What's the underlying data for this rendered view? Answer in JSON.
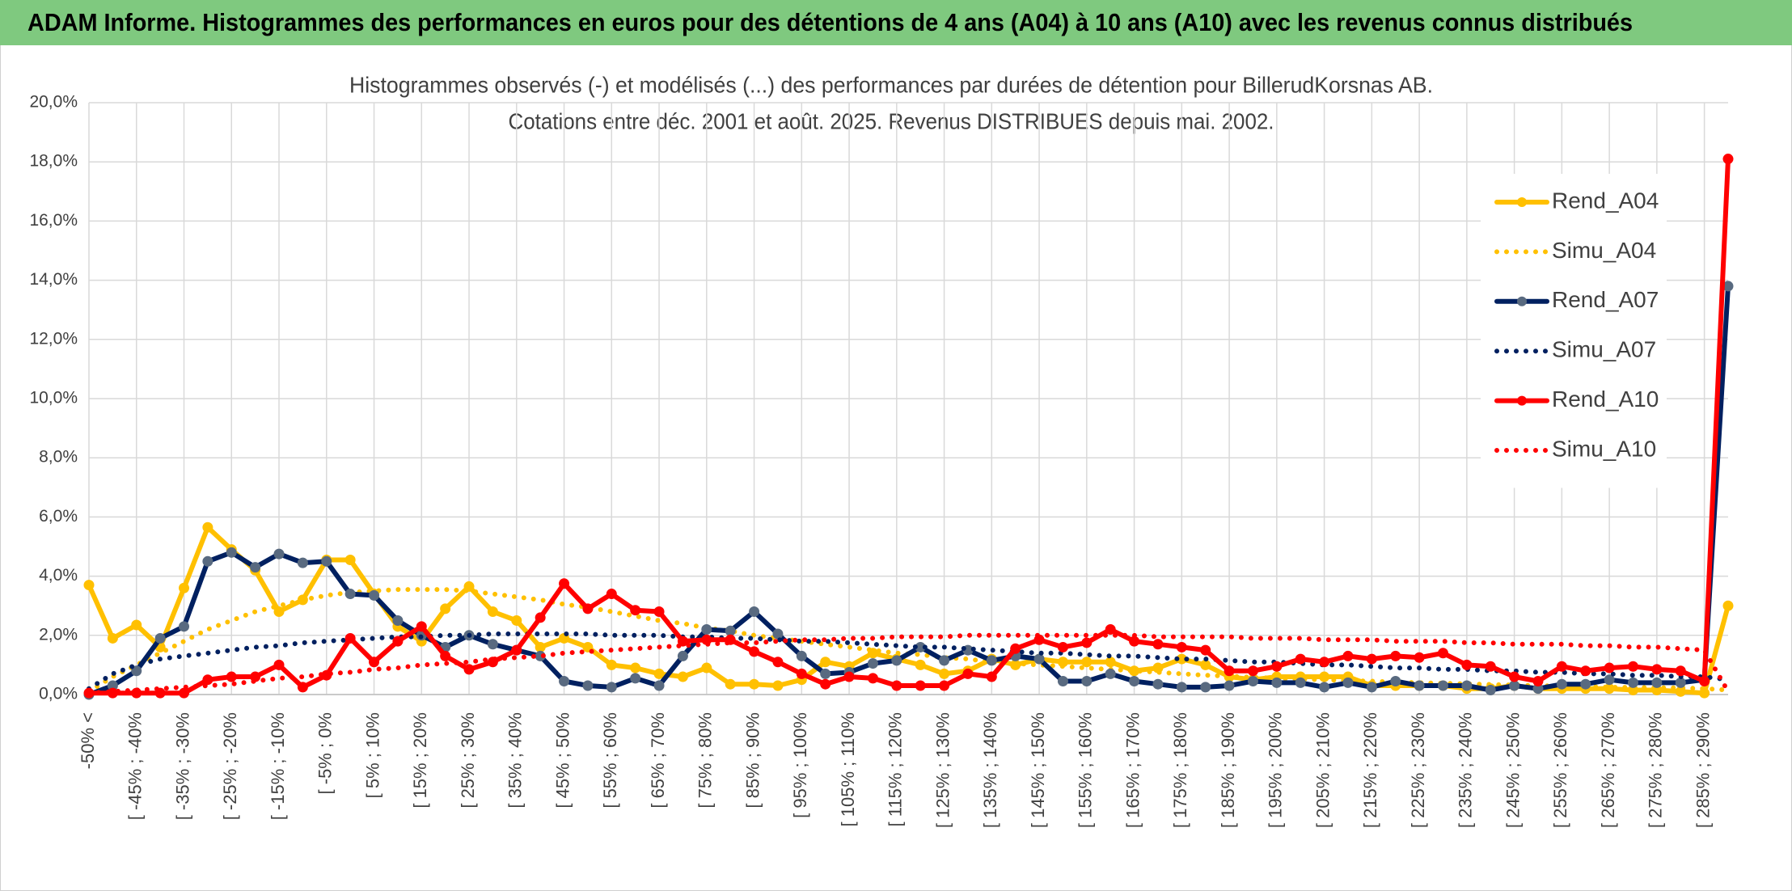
{
  "header": {
    "title": "ADAM Informe. Histogrammes des performances en euros pour des détentions de 4 ans (A04) à 10 ans (A10) avec les revenus connus distribués"
  },
  "chart_data": {
    "type": "line",
    "title": "Histogrammes observés (-) et modélisés (...) des performances par durées de détention pour BillerudKorsnas AB.",
    "subtitle": "Cotations entre déc. 2001 et août. 2025. Revenus DISTRIBUES depuis mai. 2002.",
    "categories": [
      "-50% <",
      null,
      "[ -45% ; -40%",
      null,
      "[ -35% ; -30%",
      null,
      "[ -25% ; -20%",
      null,
      "[ -15% ; -10%",
      null,
      "[ -5% ; 0%",
      null,
      "[ 5% ; 10%",
      null,
      "[ 15% ; 20%",
      null,
      "[ 25% ; 30%",
      null,
      "[ 35% ; 40%",
      null,
      "[ 45% ; 50%",
      null,
      "[ 55% ; 60%",
      null,
      "[ 65% ; 70%",
      null,
      "[ 75% ; 80%",
      null,
      "[ 85% ; 90%",
      null,
      "[ 95% ; 100%",
      null,
      "[ 105% ; 110%",
      null,
      "[ 115% ; 120%",
      null,
      "[ 125% ; 130%",
      null,
      "[ 135% ; 140%",
      null,
      "[ 145% ; 150%",
      null,
      "[ 155% ; 160%",
      null,
      "[ 165% ; 170%",
      null,
      "[ 175% ; 180%",
      null,
      "[ 185% ; 190%",
      null,
      "[ 195% ; 200%",
      null,
      "[ 205% ; 210%",
      null,
      "[ 215% ; 220%",
      null,
      "[ 225% ; 230%",
      null,
      "[ 235% ; 240%",
      null,
      "[ 245% ; 250%",
      null,
      "[ 255% ; 260%",
      null,
      "[ 265% ; 270%",
      null,
      "[ 275% ; 280%",
      null,
      "[ 285% ; 290%",
      null
    ],
    "series": [
      {
        "name": "Rend_A04",
        "color": "#FFC000",
        "style": "solid",
        "marker": true,
        "values": [
          3.7,
          1.9,
          2.35,
          1.6,
          3.6,
          5.65,
          4.9,
          4.2,
          2.8,
          3.2,
          4.55,
          4.55,
          3.4,
          2.3,
          1.8,
          2.9,
          3.65,
          2.8,
          2.5,
          1.6,
          1.9,
          1.6,
          1.0,
          0.9,
          0.7,
          0.6,
          0.9,
          0.35,
          0.35,
          0.3,
          0.5,
          1.1,
          0.95,
          1.4,
          1.2,
          1.0,
          0.7,
          0.8,
          1.2,
          1.0,
          1.2,
          1.1,
          1.1,
          1.1,
          0.8,
          0.9,
          1.2,
          1.0,
          0.6,
          0.5,
          0.6,
          0.6,
          0.6,
          0.6,
          0.3,
          0.3,
          0.3,
          0.3,
          0.2,
          0.2,
          0.3,
          0.2,
          0.2,
          0.2,
          0.2,
          0.15,
          0.15,
          0.1,
          0.05,
          3.0
        ]
      },
      {
        "name": "Simu_A04",
        "color": "#FFC000",
        "style": "dotted",
        "marker": false,
        "values": [
          0.1,
          0.6,
          1.0,
          1.4,
          1.8,
          2.2,
          2.5,
          2.8,
          3.0,
          3.2,
          3.35,
          3.45,
          3.5,
          3.55,
          3.55,
          3.55,
          3.5,
          3.4,
          3.3,
          3.2,
          3.05,
          2.95,
          2.8,
          2.65,
          2.5,
          2.4,
          2.25,
          2.15,
          2.0,
          1.9,
          1.8,
          1.7,
          1.6,
          1.5,
          1.4,
          1.35,
          1.25,
          1.2,
          1.1,
          1.05,
          1.0,
          0.95,
          0.9,
          0.85,
          0.8,
          0.75,
          0.7,
          0.65,
          0.62,
          0.58,
          0.55,
          0.52,
          0.5,
          0.47,
          0.45,
          0.42,
          0.4,
          0.38,
          0.36,
          0.34,
          0.32,
          0.3,
          0.28,
          0.27,
          0.25,
          0.24,
          0.23,
          0.22,
          0.2,
          0.15
        ]
      },
      {
        "name": "Rend_A07",
        "color": "#002060",
        "marker_color": "#596a80",
        "style": "solid",
        "marker": true,
        "values": [
          0.0,
          0.3,
          0.8,
          1.9,
          2.3,
          4.5,
          4.8,
          4.3,
          4.75,
          4.45,
          4.5,
          3.4,
          3.35,
          2.5,
          2.0,
          1.6,
          2.0,
          1.7,
          1.5,
          1.3,
          0.45,
          0.3,
          0.25,
          0.55,
          0.3,
          1.3,
          2.2,
          2.15,
          2.8,
          2.05,
          1.3,
          0.7,
          0.75,
          1.05,
          1.15,
          1.6,
          1.15,
          1.5,
          1.15,
          1.3,
          1.2,
          0.45,
          0.45,
          0.7,
          0.45,
          0.35,
          0.25,
          0.25,
          0.3,
          0.45,
          0.4,
          0.4,
          0.25,
          0.4,
          0.25,
          0.45,
          0.3,
          0.3,
          0.3,
          0.15,
          0.3,
          0.2,
          0.35,
          0.35,
          0.5,
          0.4,
          0.4,
          0.4,
          0.5,
          13.8
        ]
      },
      {
        "name": "Simu_A07",
        "color": "#002060",
        "style": "dotted",
        "marker": false,
        "values": [
          0.2,
          0.7,
          1.0,
          1.2,
          1.3,
          1.4,
          1.5,
          1.6,
          1.65,
          1.75,
          1.8,
          1.85,
          1.9,
          1.95,
          1.95,
          2.0,
          2.0,
          2.05,
          2.05,
          2.05,
          2.05,
          2.05,
          2.0,
          2.0,
          2.0,
          1.95,
          1.95,
          1.9,
          1.9,
          1.85,
          1.8,
          1.8,
          1.75,
          1.7,
          1.65,
          1.6,
          1.6,
          1.55,
          1.5,
          1.45,
          1.4,
          1.4,
          1.35,
          1.3,
          1.3,
          1.25,
          1.2,
          1.2,
          1.15,
          1.1,
          1.1,
          1.05,
          1.0,
          1.0,
          0.95,
          0.9,
          0.9,
          0.85,
          0.85,
          0.8,
          0.8,
          0.75,
          0.75,
          0.7,
          0.7,
          0.65,
          0.65,
          0.6,
          0.6,
          0.5
        ]
      },
      {
        "name": "Rend_A10",
        "color": "#FF0000",
        "style": "solid",
        "marker": true,
        "values": [
          0.05,
          0.05,
          0.05,
          0.05,
          0.05,
          0.5,
          0.6,
          0.6,
          1.0,
          0.25,
          0.65,
          1.9,
          1.1,
          1.8,
          2.3,
          1.3,
          0.85,
          1.1,
          1.5,
          2.6,
          3.75,
          2.9,
          3.4,
          2.85,
          2.8,
          1.8,
          1.85,
          1.85,
          1.45,
          1.1,
          0.7,
          0.35,
          0.6,
          0.55,
          0.3,
          0.3,
          0.3,
          0.7,
          0.6,
          1.55,
          1.85,
          1.6,
          1.75,
          2.2,
          1.8,
          1.7,
          1.6,
          1.5,
          0.8,
          0.8,
          0.95,
          1.2,
          1.1,
          1.3,
          1.2,
          1.3,
          1.25,
          1.4,
          1.0,
          0.95,
          0.6,
          0.45,
          0.95,
          0.8,
          0.9,
          0.95,
          0.85,
          0.8,
          0.45,
          18.1
        ]
      },
      {
        "name": "Simu_A10",
        "color": "#FF0000",
        "style": "dotted",
        "marker": false,
        "values": [
          0.05,
          0.1,
          0.15,
          0.2,
          0.25,
          0.3,
          0.35,
          0.45,
          0.55,
          0.6,
          0.7,
          0.75,
          0.85,
          0.9,
          1.0,
          1.05,
          1.1,
          1.2,
          1.25,
          1.3,
          1.4,
          1.45,
          1.5,
          1.55,
          1.6,
          1.65,
          1.7,
          1.75,
          1.75,
          1.8,
          1.85,
          1.85,
          1.9,
          1.9,
          1.95,
          1.95,
          1.95,
          2.0,
          2.0,
          2.0,
          2.0,
          2.0,
          2.0,
          2.0,
          2.0,
          1.95,
          1.95,
          1.95,
          1.95,
          1.9,
          1.9,
          1.9,
          1.85,
          1.85,
          1.85,
          1.8,
          1.8,
          1.8,
          1.75,
          1.75,
          1.7,
          1.7,
          1.7,
          1.65,
          1.65,
          1.6,
          1.6,
          1.55,
          1.5,
          0.1
        ]
      }
    ],
    "ylim": [
      0,
      20
    ],
    "yticks": [
      {
        "value": 0,
        "label": "0,0%"
      },
      {
        "value": 2,
        "label": "2,0%"
      },
      {
        "value": 4,
        "label": "4,0%"
      },
      {
        "value": 6,
        "label": "6,0%"
      },
      {
        "value": 8,
        "label": "8,0%"
      },
      {
        "value": 10,
        "label": "10,0%"
      },
      {
        "value": 12,
        "label": "12,0%"
      },
      {
        "value": 14,
        "label": "14,0%"
      },
      {
        "value": 16,
        "label": "16,0%"
      },
      {
        "value": 18,
        "label": "18,0%"
      },
      {
        "value": 20,
        "label": "20,0%"
      }
    ],
    "grid": true,
    "legend": "right"
  }
}
